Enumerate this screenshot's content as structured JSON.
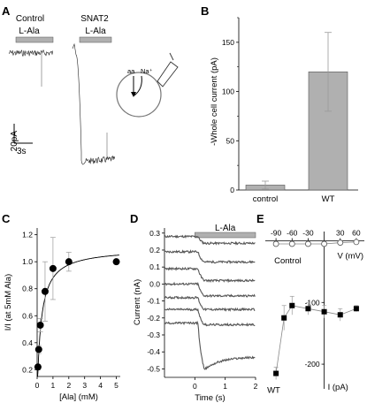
{
  "panels": {
    "A": {
      "letter": "A",
      "control_label": "Control",
      "snat2_label": "SNAT2",
      "drug_label": "L-Ala",
      "drug_label_2": "L-Ala",
      "scale_current": "20pA",
      "scale_time": "3s",
      "diagram_aa": "aa",
      "diagram_na": "Na⁺"
    },
    "B": {
      "letter": "B"
    },
    "C": {
      "letter": "C"
    },
    "D": {
      "letter": "D",
      "drug_label": "L-Ala"
    },
    "E": {
      "letter": "E",
      "control_label": "Control",
      "wt_label": "WT"
    }
  },
  "colors": {
    "trace": "#222222",
    "bar_fill": "#b0b0b0",
    "drug_bar": "#b0b0b0",
    "errorbar": "#9a9a9a",
    "marker": "#000000"
  },
  "chart_data": [
    {
      "panel": "B",
      "type": "bar",
      "categories": [
        "control",
        "WT"
      ],
      "values": [
        5,
        120
      ],
      "errors": [
        4,
        40
      ],
      "title": "",
      "xlabel": "",
      "ylabel": "-Whole cell current (pA)",
      "ylim": [
        0,
        175
      ],
      "yticks": [
        0,
        50,
        100,
        150
      ]
    },
    {
      "panel": "C",
      "type": "scatter",
      "xlabel": "[Ala] (mM)",
      "ylabel": "I/I (at 5mM Ala)",
      "xlim": [
        0,
        5.25
      ],
      "ylim": [
        0.15,
        1.25
      ],
      "xticks": [
        0,
        1,
        2,
        3,
        4,
        5
      ],
      "yticks": [
        0.2,
        0.4,
        0.6,
        0.8,
        1.0,
        1.2
      ],
      "x": [
        0.05,
        0.1,
        0.2,
        0.5,
        1,
        2,
        5
      ],
      "y": [
        0.22,
        0.35,
        0.53,
        0.78,
        0.95,
        1.0,
        1.0
      ],
      "yerr": [
        0.02,
        0.03,
        0.05,
        0.22,
        0.23,
        0.07,
        0
      ],
      "fit": {
        "model": "michaelis-menten",
        "vmax": 1.1,
        "km": 0.25
      }
    },
    {
      "panel": "D",
      "type": "line",
      "xlabel": "Time (s)",
      "ylabel": "Current (nA)",
      "xlim": [
        -1,
        2
      ],
      "ylim": [
        -0.55,
        0.33
      ],
      "xticks": [
        0,
        1,
        2
      ],
      "yticks": [
        0.3,
        0.2,
        0.1,
        0.0,
        -0.1,
        -0.2,
        -0.3,
        -0.4,
        -0.5
      ],
      "drug_on": [
        0,
        2
      ],
      "series": [
        {
          "baseline": 0.28,
          "steady": 0.24,
          "peak": 0.24
        },
        {
          "baseline": 0.19,
          "steady": 0.13,
          "peak": 0.13
        },
        {
          "baseline": 0.09,
          "steady": 0.02,
          "peak": 0.02
        },
        {
          "baseline": 0.0,
          "steady": -0.07,
          "peak": -0.07
        },
        {
          "baseline": -0.08,
          "steady": -0.15,
          "peak": -0.15
        },
        {
          "baseline": -0.15,
          "steady": -0.24,
          "peak": -0.24
        },
        {
          "baseline": -0.23,
          "steady": -0.43,
          "peak": -0.5
        }
      ]
    },
    {
      "panel": "E",
      "type": "scatter",
      "xlabel": "V (mV)",
      "ylabel": "I (pA)",
      "xticks": [
        -90,
        -60,
        -30,
        30,
        60
      ],
      "yticks": [
        -100,
        -200
      ],
      "xlim": [
        -110,
        75
      ],
      "ylim": [
        -240,
        15
      ],
      "series": [
        {
          "name": "WT",
          "x": [
            -90,
            -75,
            -60,
            -30,
            0,
            30,
            60
          ],
          "y": [
            -215,
            -125,
            -105,
            -110,
            -115,
            -120,
            -110
          ],
          "yerr": [
            10,
            20,
            15,
            10,
            10,
            10,
            5
          ]
        },
        {
          "name": "Control",
          "x": [
            -90,
            -60,
            -30,
            0,
            30,
            60
          ],
          "y": [
            -5,
            -5,
            -5,
            -5,
            -3,
            -2
          ],
          "yerr": [
            2,
            2,
            2,
            2,
            2,
            2
          ]
        }
      ]
    }
  ]
}
